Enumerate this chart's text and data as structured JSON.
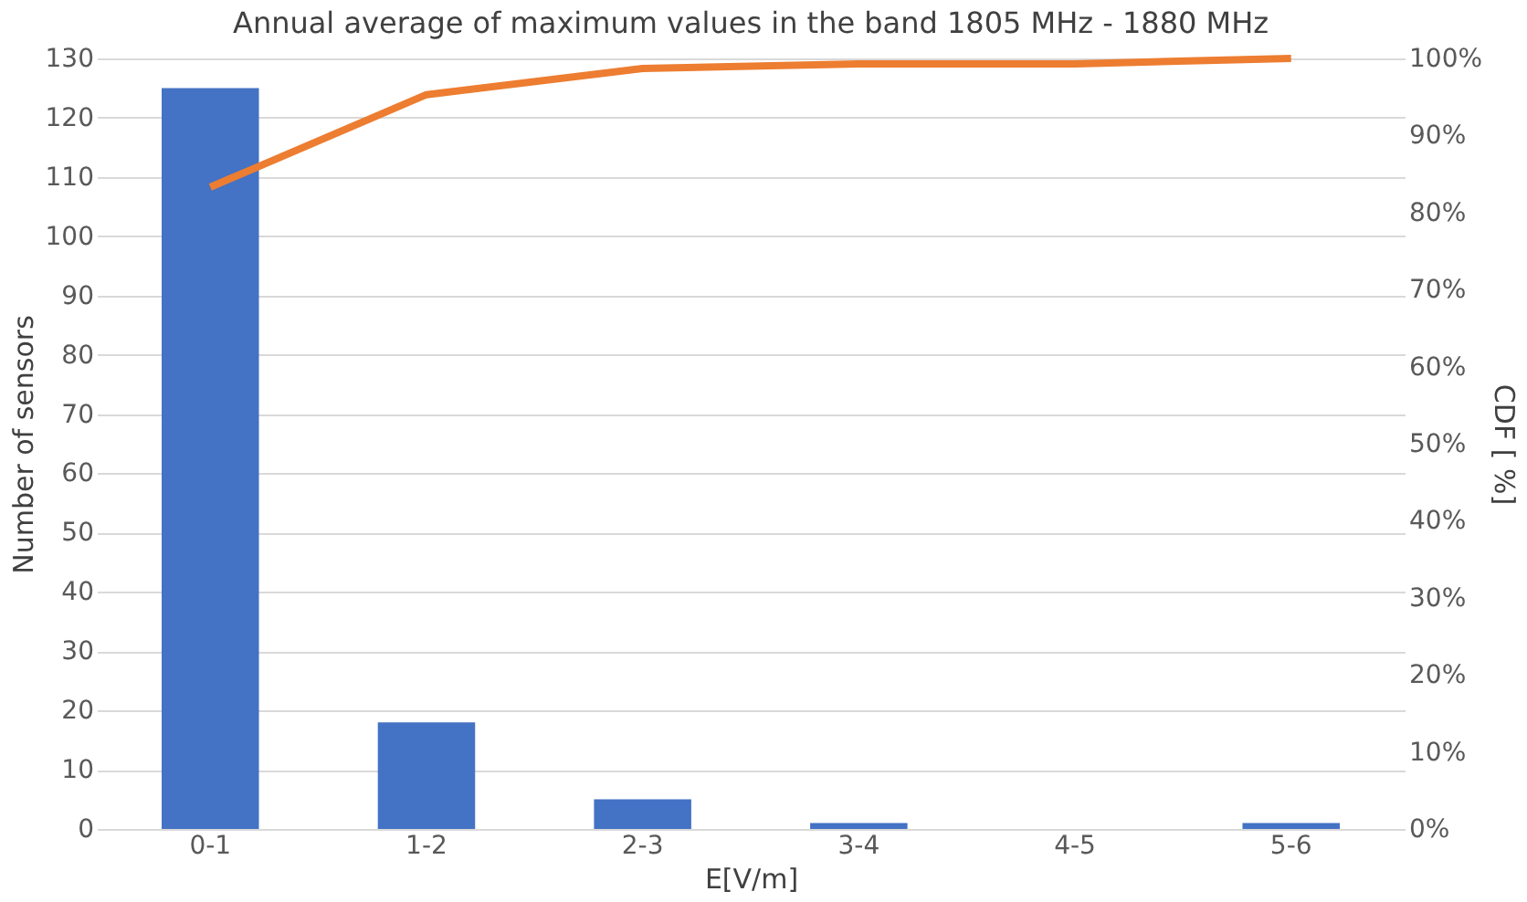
{
  "chart_data": {
    "type": "bar",
    "title": "Annual average of maximum values in the band 1805 MHz - 1880 MHz",
    "xlabel": "E[V/m]",
    "ylabel": "Number of sensors",
    "y2label": "CDF [ %]",
    "categories": [
      "0-1",
      "1-2",
      "2-3",
      "3-4",
      "4-5",
      "5-6"
    ],
    "series": [
      {
        "color": "#4472c4",
        "values": [
          125,
          18,
          5,
          1,
          0,
          1
        ]
      },
      {
        "type": "line",
        "axis": "y2",
        "color": "#ed7d31",
        "values": [
          83.3,
          95.3,
          98.7,
          99.3,
          99.3,
          100
        ]
      }
    ],
    "ylim": [
      0,
      130
    ],
    "yticks": [
      0,
      10,
      20,
      30,
      40,
      50,
      60,
      70,
      80,
      90,
      100,
      110,
      120,
      130
    ],
    "y2lim": [
      0,
      100
    ],
    "y2ticks": [
      {
        "value": 0,
        "label": "0%"
      },
      {
        "value": 10,
        "label": "10%"
      },
      {
        "value": 20,
        "label": "20%"
      },
      {
        "value": 30,
        "label": "30%"
      },
      {
        "value": 40,
        "label": "40%"
      },
      {
        "value": 50,
        "label": "50%"
      },
      {
        "value": 60,
        "label": "60%"
      },
      {
        "value": 70,
        "label": "70%"
      },
      {
        "value": 80,
        "label": "80%"
      },
      {
        "value": 90,
        "label": "90%"
      },
      {
        "value": 100,
        "label": "100%"
      }
    ],
    "grid": "y",
    "legend": false,
    "marker": "none",
    "line_style": "solid"
  }
}
